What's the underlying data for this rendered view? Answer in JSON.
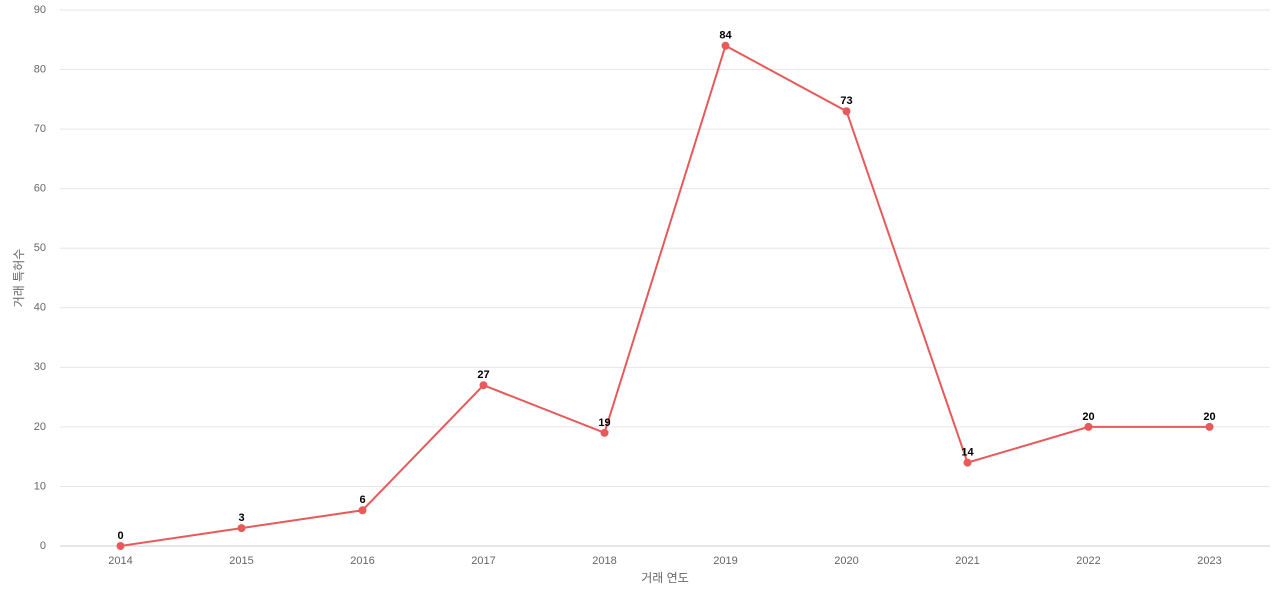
{
  "chart_data": {
    "type": "line",
    "x_label": "거래 연도",
    "y_label": "거래 특허수",
    "categories": [
      "2014",
      "2015",
      "2016",
      "2017",
      "2018",
      "2019",
      "2020",
      "2021",
      "2022",
      "2023"
    ],
    "series": [
      {
        "name": "거래 특허수",
        "color": "#e85a5a",
        "values": [
          0,
          3,
          6,
          27,
          19,
          84,
          73,
          14,
          20,
          20
        ]
      }
    ],
    "ylim": [
      0,
      90
    ],
    "yticks": [
      0,
      10,
      20,
      30,
      40,
      50,
      60,
      70,
      80,
      90
    ],
    "grid": true
  }
}
